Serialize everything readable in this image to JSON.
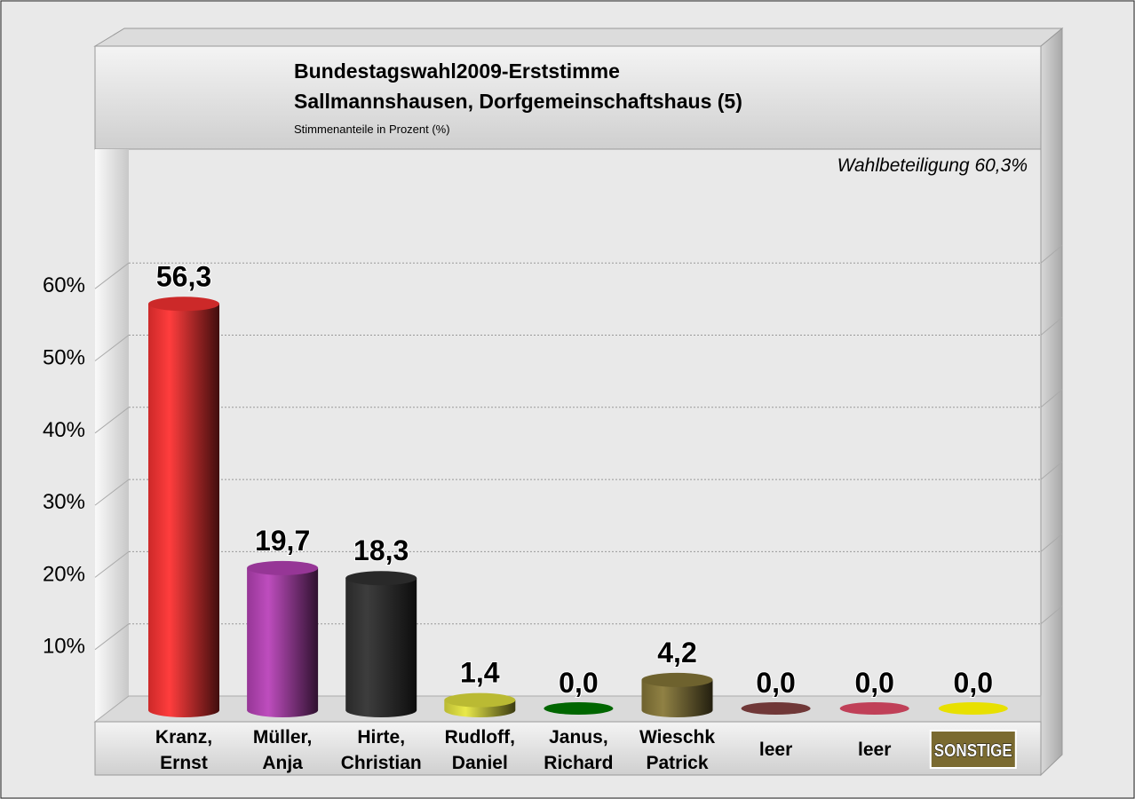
{
  "chart_data": {
    "type": "bar",
    "title": "Bundestagswahl2009-Erststimme",
    "subtitle": "Sallmannshausen, Dorfgemeinschaftshaus (5)",
    "ylabel": "Stimmenanteile in Prozent (%)",
    "annotation": "Wahlbeteiligung 60,3%",
    "ylim": [
      0,
      70
    ],
    "yticks": [
      "10%",
      "20%",
      "30%",
      "40%",
      "50%",
      "60%"
    ],
    "ytick_values": [
      10,
      20,
      30,
      40,
      50,
      60
    ],
    "grid": true,
    "categories": [
      [
        "Kranz,",
        "Ernst"
      ],
      [
        "Müller,",
        "Anja"
      ],
      [
        "Hirte,",
        "Christian"
      ],
      [
        "Rudloff,",
        "Daniel"
      ],
      [
        "Janus,",
        "Richard"
      ],
      [
        "Wieschk",
        "Patrick"
      ],
      [
        "leer"
      ],
      [
        "leer"
      ],
      [
        "SONSTIGE"
      ]
    ],
    "values": [
      56.3,
      19.7,
      18.3,
      1.4,
      0.0,
      4.2,
      0.0,
      0.0,
      0.0
    ],
    "value_labels": [
      "56,3",
      "19,7",
      "18,3",
      "1,4",
      "0,0",
      "4,2",
      "0,0",
      "0,0",
      "0,0"
    ],
    "colors": [
      "#ff3333",
      "#bb44bb",
      "#333333",
      "#e8e840",
      "#006600",
      "#8a7a3a",
      "#703838",
      "#c04058",
      "#e8e000"
    ]
  }
}
